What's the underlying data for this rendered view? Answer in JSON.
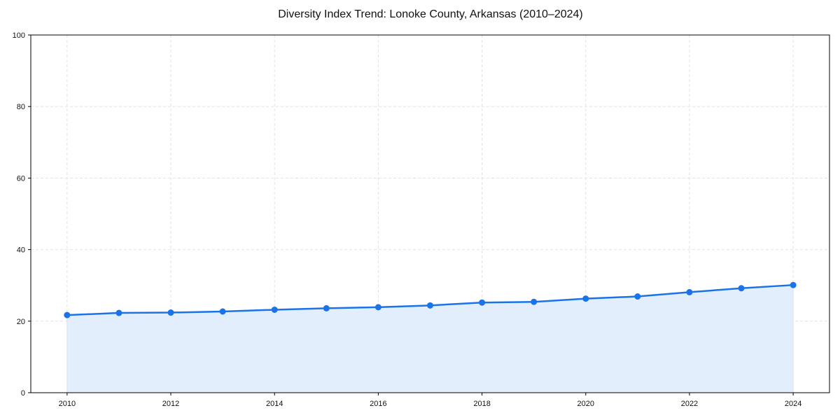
{
  "chart_data": {
    "type": "line",
    "title": "Diversity Index Trend: Lonoke County, Arkansas (2010–2024)",
    "xlabel": "",
    "ylabel": "",
    "x": [
      2010,
      2011,
      2012,
      2013,
      2014,
      2015,
      2016,
      2017,
      2018,
      2019,
      2020,
      2021,
      2022,
      2023,
      2024
    ],
    "series": [
      {
        "name": "Diversity Index",
        "values": [
          21.7,
          22.3,
          22.4,
          22.7,
          23.2,
          23.6,
          23.9,
          24.4,
          25.2,
          25.4,
          26.3,
          26.9,
          28.1,
          29.2,
          30.1
        ],
        "color": "#1a73e8",
        "fill": "#e3eefc"
      }
    ],
    "ylim": [
      0,
      100
    ],
    "xlim": [
      2009.3,
      2024.7
    ],
    "yticks": [
      0,
      20,
      40,
      60,
      80,
      100
    ],
    "xticks": [
      2010,
      2012,
      2014,
      2016,
      2018,
      2020,
      2022,
      2024
    ],
    "grid": true,
    "legend": null
  }
}
